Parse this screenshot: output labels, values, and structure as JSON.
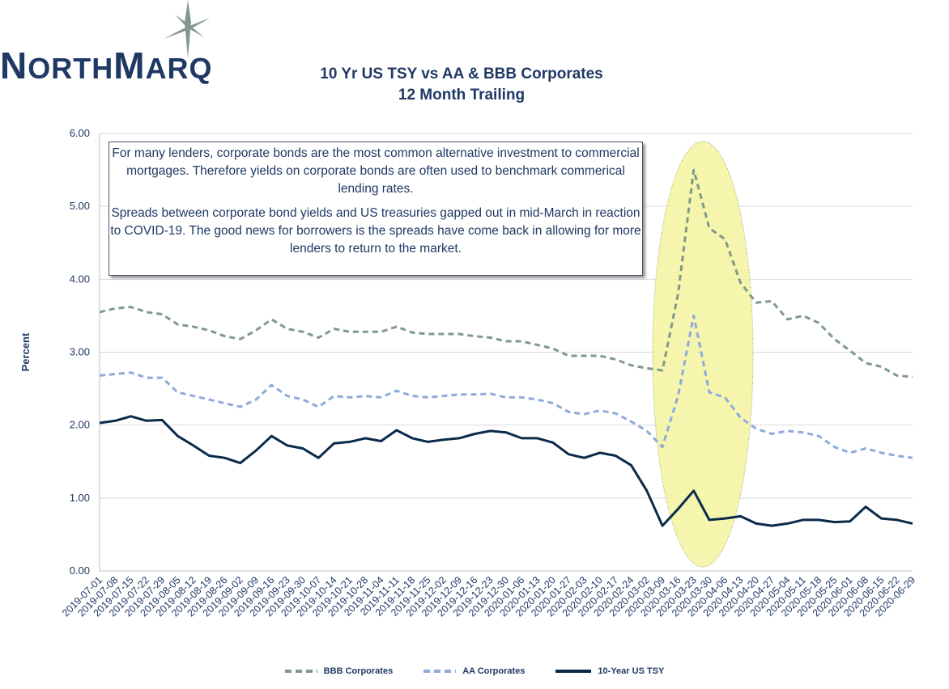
{
  "brand": {
    "logo_text": "NORTHMARQ"
  },
  "chart_data": {
    "type": "line",
    "title": "10 Yr US TSY vs AA & BBB Corporates",
    "subtitle": "12 Month Trailing",
    "xlabel": "",
    "ylabel": "Percent",
    "ylim": [
      0,
      6
    ],
    "yticks": [
      "0.00",
      "1.00",
      "2.00",
      "3.00",
      "4.00",
      "5.00",
      "6.00"
    ],
    "grid": true,
    "legend_position": "bottom",
    "x": [
      "2019-07-01",
      "2019-07-08",
      "2019-07-15",
      "2019-07-22",
      "2019-07-29",
      "2019-08-05",
      "2019-08-12",
      "2019-08-19",
      "2019-08-26",
      "2019-09-02",
      "2019-09-09",
      "2019-09-16",
      "2019-09-23",
      "2019-09-30",
      "2019-10-07",
      "2019-10-14",
      "2019-10-21",
      "2019-10-28",
      "2019-11-04",
      "2019-11-11",
      "2019-11-18",
      "2019-11-25",
      "2019-12-02",
      "2019-12-09",
      "2019-12-16",
      "2019-12-23",
      "2019-12-30",
      "2020-01-06",
      "2020-01-13",
      "2020-01-20",
      "2020-01-27",
      "2020-02-03",
      "2020-02-10",
      "2020-02-17",
      "2020-02-24",
      "2020-03-02",
      "2020-03-09",
      "2020-03-16",
      "2020-03-23",
      "2020-03-30",
      "2020-04-06",
      "2020-04-13",
      "2020-04-20",
      "2020-04-27",
      "2020-05-04",
      "2020-05-11",
      "2020-05-18",
      "2020-05-25",
      "2020-06-01",
      "2020-06-08",
      "2020-06-15",
      "2020-06-22",
      "2020-06-29"
    ],
    "series": [
      {
        "name": "BBB Corporates",
        "color": "#7f9a86",
        "style": "dashed",
        "values": [
          3.55,
          3.6,
          3.62,
          3.55,
          3.52,
          3.38,
          3.35,
          3.3,
          3.22,
          3.18,
          3.3,
          3.45,
          3.32,
          3.28,
          3.2,
          3.32,
          3.28,
          3.28,
          3.28,
          3.35,
          3.27,
          3.25,
          3.25,
          3.25,
          3.22,
          3.2,
          3.15,
          3.15,
          3.1,
          3.05,
          2.95,
          2.95,
          2.95,
          2.9,
          2.82,
          2.78,
          2.75,
          3.8,
          5.5,
          4.7,
          4.55,
          3.95,
          3.68,
          3.7,
          3.45,
          3.5,
          3.4,
          3.18,
          3.02,
          2.85,
          2.8,
          2.68,
          2.66
        ]
      },
      {
        "name": "AA Corporates",
        "color": "#8eaadb",
        "style": "dashed",
        "values": [
          2.68,
          2.7,
          2.72,
          2.65,
          2.65,
          2.45,
          2.4,
          2.35,
          2.3,
          2.25,
          2.35,
          2.55,
          2.4,
          2.35,
          2.25,
          2.4,
          2.38,
          2.4,
          2.38,
          2.47,
          2.4,
          2.38,
          2.4,
          2.42,
          2.42,
          2.43,
          2.38,
          2.38,
          2.35,
          2.3,
          2.18,
          2.15,
          2.2,
          2.16,
          2.05,
          1.92,
          1.7,
          2.4,
          3.5,
          2.45,
          2.38,
          2.1,
          1.95,
          1.88,
          1.92,
          1.9,
          1.85,
          1.7,
          1.62,
          1.68,
          1.62,
          1.58,
          1.55
        ]
      },
      {
        "name": "10-Year US TSY",
        "color": "#0b2a4a",
        "style": "solid",
        "values": [
          2.03,
          2.06,
          2.12,
          2.06,
          2.07,
          1.85,
          1.72,
          1.58,
          1.55,
          1.48,
          1.65,
          1.85,
          1.72,
          1.68,
          1.55,
          1.75,
          1.77,
          1.82,
          1.78,
          1.93,
          1.82,
          1.77,
          1.8,
          1.82,
          1.88,
          1.92,
          1.9,
          1.82,
          1.82,
          1.76,
          1.6,
          1.55,
          1.62,
          1.58,
          1.45,
          1.1,
          0.62,
          0.85,
          1.1,
          0.7,
          0.72,
          0.75,
          0.65,
          0.62,
          0.65,
          0.7,
          0.7,
          0.67,
          0.68,
          0.88,
          0.72,
          0.7,
          0.65
        ]
      }
    ],
    "annotation": {
      "paragraph1": "For many lenders, corporate bonds are the most common alternative investment to commercial mortgages. Therefore yields on corporate bonds are often used to benchmark commerical lending rates.",
      "paragraph2": "Spreads between corporate bond yields and US treasuries gapped out in mid-March in reaction to COVID-19. The good news for borrowers is the  spreads have come back in allowing for more lenders to return to the market."
    },
    "highlight_color": "#f5f3a0"
  }
}
